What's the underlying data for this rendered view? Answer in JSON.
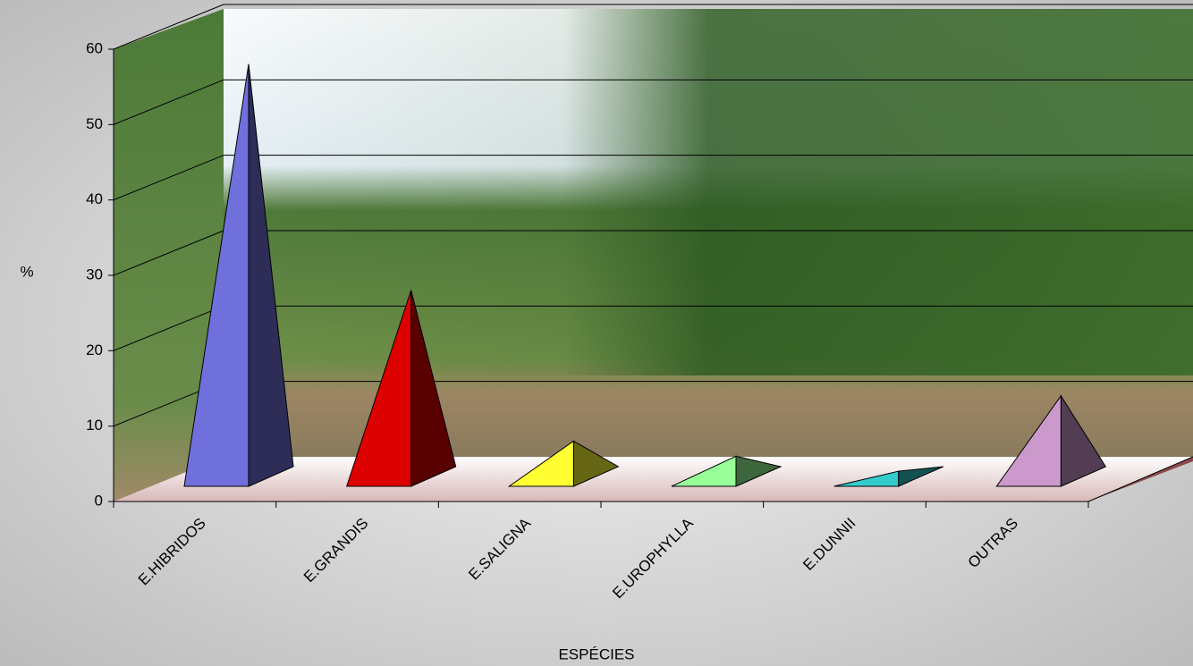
{
  "chart_data": {
    "type": "pyramid3d",
    "x_label": "ESPÉCIES",
    "y_label": "%",
    "categories": [
      "E.HIBRIDOS",
      "E.GRANDIS",
      "E.SALIGNA",
      "E.UROPHYLLA",
      "E.DUNNII",
      "OUTRAS"
    ],
    "values": [
      56,
      26,
      6,
      4,
      2,
      12
    ],
    "colors": [
      "#7070dd",
      "#dd0000",
      "#ffff33",
      "#99ff99",
      "#33cccc",
      "#cc99cc"
    ],
    "ylim": [
      0,
      60
    ],
    "yticks": [
      0,
      10,
      20,
      30,
      40,
      50,
      60
    ],
    "grid": true
  }
}
